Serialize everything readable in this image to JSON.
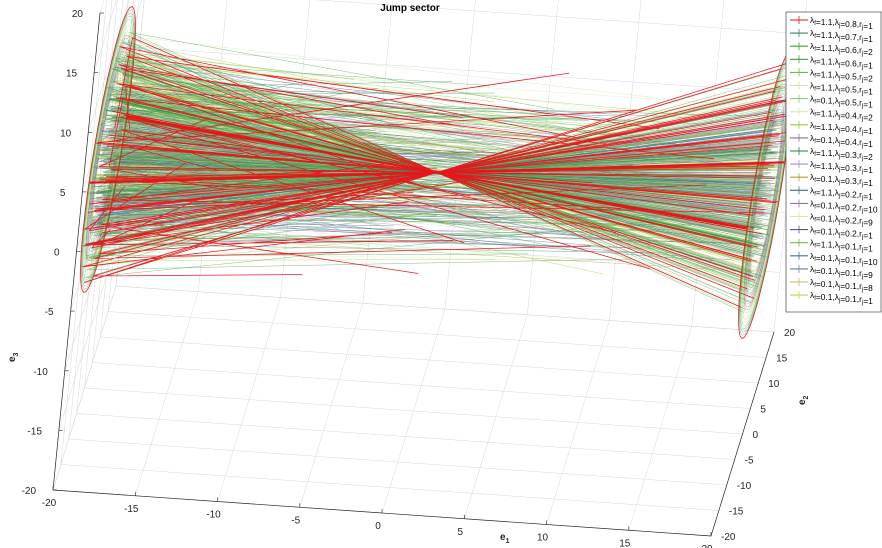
{
  "chart_data": {
    "type": "line",
    "title": "Jump sector",
    "xlabel": "e",
    "xlabel_sub": "1",
    "ylabel": "e",
    "ylabel_sub": "2",
    "zlabel": "e",
    "zlabel_sub": "3",
    "xlim": [
      -20,
      20
    ],
    "ylim": [
      -20,
      20
    ],
    "zlim": [
      -20,
      20
    ],
    "x_ticks": [
      "-20",
      "-15",
      "-10",
      "-5",
      "0",
      "5",
      "10",
      "15",
      "20"
    ],
    "y_ticks": [
      "-20",
      "-15",
      "-10",
      "-5",
      "0",
      "5",
      "10",
      "15",
      "20"
    ],
    "z_ticks": [
      "-20",
      "-15",
      "-10",
      "-5",
      "0",
      "5",
      "10",
      "15",
      "20"
    ],
    "grid": true,
    "legend_position": "top-right",
    "series": [
      {
        "name": "λf=1.1,λj=0.8,rj=1",
        "lf": "1.1",
        "lj": "0.8",
        "rj": "1",
        "color": "#e8141a"
      },
      {
        "name": "λf=1.1,λj=0.7,rj=1",
        "lf": "1.1",
        "lj": "0.7",
        "rj": "1",
        "color": "#2e8b6e"
      },
      {
        "name": "λf=1.1,λj=0.6,rj=2",
        "lf": "1.1",
        "lj": "0.6",
        "rj": "2",
        "color": "#3aa23a"
      },
      {
        "name": "λf=1.1,λj=0.6,rj=1",
        "lf": "1.1",
        "lj": "0.6",
        "rj": "1",
        "color": "#4a9a4a"
      },
      {
        "name": "λf=1.1,λj=0.5,rj=2",
        "lf": "1.1",
        "lj": "0.5",
        "rj": "2",
        "color": "#6cbf3a"
      },
      {
        "name": "λf=1.1,λj=0.5,rj=1",
        "lf": "1.1",
        "lj": "0.5",
        "rj": "1",
        "color": "#c9e6a8"
      },
      {
        "name": "λf=0.1,λj=0.5,rj=1",
        "lf": "0.1",
        "lj": "0.5",
        "rj": "1",
        "color": "#8fcf6a"
      },
      {
        "name": "λf=1.1,λj=0.4,rj=2",
        "lf": "1.1",
        "lj": "0.4",
        "rj": "2",
        "color": "#d7ecb0"
      },
      {
        "name": "λf=1.1,λj=0.4,rj=1",
        "lf": "1.1",
        "lj": "0.4",
        "rj": "1",
        "color": "#9acd32"
      },
      {
        "name": "λf=0.1,λj=0.4,rj=1",
        "lf": "0.1",
        "lj": "0.4",
        "rj": "1",
        "color": "#8b6f9e"
      },
      {
        "name": "λf=1.1,λj=0.3,rj=2",
        "lf": "1.1",
        "lj": "0.3",
        "rj": "2",
        "color": "#2f7d2f"
      },
      {
        "name": "λf=1.1,λj=0.3,rj=1",
        "lf": "1.1",
        "lj": "0.3",
        "rj": "1",
        "color": "#a98bc9"
      },
      {
        "name": "λf=0.1,λj=0.3,rj=1",
        "lf": "0.1",
        "lj": "0.3",
        "rj": "1",
        "color": "#b5a02a"
      },
      {
        "name": "λf=1.1,λj=0.2,rj=1",
        "lf": "1.1",
        "lj": "0.2",
        "rj": "1",
        "color": "#3c6e8f"
      },
      {
        "name": "λf=0.1,λj=0.2,rj=10",
        "lf": "0.1",
        "lj": "0.2",
        "rj": "10",
        "color": "#9370c8"
      },
      {
        "name": "λf=0.1,λj=0.2,rj=9",
        "lf": "0.1",
        "lj": "0.2",
        "rj": "9",
        "color": "#d8e9a0"
      },
      {
        "name": "λf=0.1,λj=0.2,rj=1",
        "lf": "0.1",
        "lj": "0.2",
        "rj": "1",
        "color": "#5a4fa0"
      },
      {
        "name": "λf=1.1,λj=0.1,rj=1",
        "lf": "1.1",
        "lj": "0.1",
        "rj": "1",
        "color": "#7fb24a"
      },
      {
        "name": "λf=0.1,λj=0.1,rj=10",
        "lf": "0.1",
        "lj": "0.1",
        "rj": "10",
        "color": "#4a6e9a"
      },
      {
        "name": "λf=0.1,λj=0.1,rj=9",
        "lf": "0.1",
        "lj": "0.1",
        "rj": "9",
        "color": "#6b7fa8"
      },
      {
        "name": "λf=0.1,λj=0.1,rj=8",
        "lf": "0.1",
        "lj": "0.1",
        "rj": "8",
        "color": "#c8b860"
      },
      {
        "name": "λf=0.1,λj=0.1,rj=1",
        "lf": "0.1",
        "lj": "0.1",
        "rj": "1",
        "color": "#b8d84a"
      }
    ]
  }
}
